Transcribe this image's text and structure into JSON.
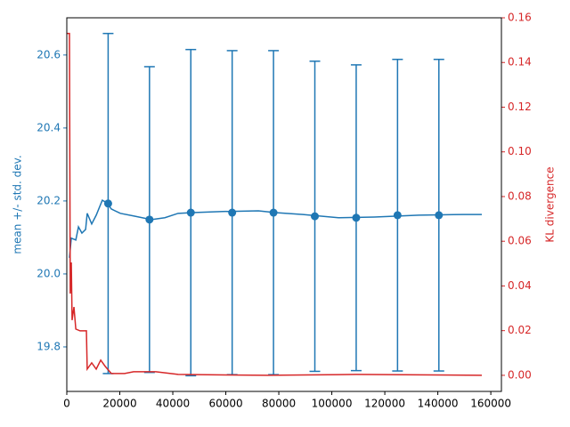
{
  "chart_data": {
    "type": "line",
    "y_label": "mean +/- std. dev.",
    "y2_label": "KL divergence",
    "xlim": [
      0,
      164000
    ],
    "xticks": [
      0,
      20000,
      40000,
      60000,
      80000,
      100000,
      120000,
      140000,
      160000
    ],
    "ylim": [
      19.678,
      20.702
    ],
    "yticks": [
      19.8,
      {
        "value": 20.0,
        "label": "20.0"
      },
      20.2,
      20.4,
      20.6
    ],
    "y2lim": [
      -0.0072,
      0.16
    ],
    "y2ticks": [
      {
        "value": 0,
        "label": "0.00"
      },
      0.02,
      0.04,
      0.06,
      0.08,
      {
        "value": 0.1,
        "label": "0.10"
      },
      0.12,
      0.14,
      0.16
    ],
    "y_color": "#1f77b4",
    "y2_color": "#d62728",
    "series": [
      {
        "type": "line",
        "color": "#1f77b4",
        "x": [
          1000,
          1700,
          3400,
          4400,
          5700,
          7100,
          7700,
          9400,
          11100,
          13400,
          15100,
          16800,
          20200,
          25200,
          31900,
          37000,
          42000,
          47400,
          58800,
          72300,
          78700,
          89100,
          102500,
          116000,
          132800,
          149600,
          156600
        ],
        "values": [
          20.044,
          20.098,
          20.093,
          20.129,
          20.112,
          20.122,
          20.166,
          20.137,
          20.161,
          20.202,
          20.195,
          20.178,
          20.166,
          20.159,
          20.149,
          20.154,
          20.166,
          20.168,
          20.171,
          20.173,
          20.168,
          20.163,
          20.154,
          20.156,
          20.161,
          20.163,
          20.163
        ]
      },
      {
        "type": "errorbar",
        "color": "#1f77b4",
        "x": [
          15600,
          31200,
          46800,
          62400,
          78000,
          93600,
          109200,
          124800,
          140400
        ],
        "values": [
          20.193,
          20.149,
          20.168,
          20.168,
          20.168,
          20.158,
          20.154,
          20.161,
          20.161
        ],
        "errors": [
          0.466,
          0.419,
          0.447,
          0.444,
          0.444,
          0.425,
          0.419,
          0.427,
          0.427
        ]
      },
      {
        "type": "line",
        "axis": "y2",
        "color": "#d62728",
        "x": [
          0,
          1000,
          1300,
          1700,
          2000,
          2700,
          3400,
          5000,
          7400,
          7700,
          9400,
          11100,
          12800,
          14500,
          16800,
          21800,
          25200,
          33600,
          42000,
          75600,
          109200,
          156600
        ],
        "values": [
          0.153,
          0.153,
          0.0366,
          0.0505,
          0.0247,
          0.0306,
          0.0207,
          0.0199,
          0.0199,
          0.0028,
          0.0056,
          0.0028,
          0.0068,
          0.004,
          0.0008,
          0.0008,
          0.0016,
          0.0016,
          0.0004,
          0,
          0.0004,
          0
        ]
      }
    ]
  }
}
